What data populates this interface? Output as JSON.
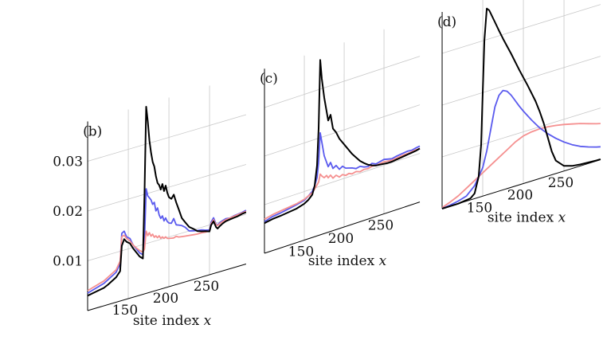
{
  "colors": {
    "black": "#000000",
    "blue": "#5a5aee",
    "pink": "#f59090",
    "grid": "#c8c8c8"
  },
  "chart_data": [
    {
      "panel_label": "(b)",
      "type": "line",
      "xlabel": "site index",
      "xlabel_var": "x",
      "x_ticks": [
        "150",
        "200",
        "250"
      ],
      "y_ticks": [
        "0.01",
        "0.02",
        "0.03"
      ],
      "series": [
        {
          "color": "#5a5aee",
          "x": [
            100,
            110,
            120,
            125,
            130,
            135,
            140,
            142,
            145,
            148,
            152,
            156,
            160,
            164,
            168,
            170,
            172,
            174,
            176,
            178,
            180,
            182,
            184,
            186,
            188,
            190,
            192,
            194,
            196,
            198,
            200,
            203,
            206,
            209,
            212,
            216,
            220,
            225,
            230,
            235,
            240,
            245,
            250,
            252,
            255,
            258,
            260,
            263,
            266,
            270,
            275,
            280,
            285,
            290,
            295
          ],
          "y": [
            0.0035,
            0.004,
            0.0045,
            0.005,
            0.0055,
            0.006,
            0.0075,
            0.0135,
            0.0138,
            0.0125,
            0.012,
            0.0105,
            0.0095,
            0.0085,
            0.008,
            0.011,
            0.021,
            0.0195,
            0.019,
            0.0185,
            0.0175,
            0.0178,
            0.016,
            0.0165,
            0.015,
            0.0142,
            0.0146,
            0.0135,
            0.014,
            0.0132,
            0.0128,
            0.0126,
            0.0134,
            0.012,
            0.0118,
            0.0115,
            0.011,
            0.01,
            0.0098,
            0.0096,
            0.0095,
            0.0092,
            0.009,
            0.0105,
            0.0112,
            0.0098,
            0.0095,
            0.0099,
            0.0101,
            0.0103,
            0.0102,
            0.0104,
            0.0105,
            0.0106,
            0.0108
          ]
        },
        {
          "color": "#f59090",
          "x": [
            100,
            110,
            120,
            125,
            130,
            135,
            140,
            142,
            145,
            148,
            152,
            156,
            160,
            164,
            168,
            170,
            172,
            174,
            176,
            178,
            180,
            182,
            184,
            186,
            188,
            190,
            192,
            194,
            196,
            198,
            200,
            203,
            206,
            209,
            212,
            216,
            220,
            225,
            230,
            235,
            240,
            245,
            250,
            252,
            255,
            258,
            260,
            263,
            266,
            270,
            275,
            280,
            285,
            290,
            295
          ],
          "y": [
            0.004,
            0.0045,
            0.005,
            0.0055,
            0.006,
            0.0065,
            0.008,
            0.0128,
            0.013,
            0.0122,
            0.0115,
            0.0105,
            0.0097,
            0.009,
            0.0085,
            0.009,
            0.0125,
            0.0115,
            0.012,
            0.0112,
            0.0115,
            0.0108,
            0.011,
            0.0105,
            0.0108,
            0.0102,
            0.0104,
            0.01,
            0.0102,
            0.0098,
            0.0097,
            0.0096,
            0.0095,
            0.0097,
            0.0094,
            0.0093,
            0.0092,
            0.0091,
            0.009,
            0.0089,
            0.0089,
            0.0088,
            0.0088,
            0.0102,
            0.0108,
            0.0097,
            0.0094,
            0.0097,
            0.0099,
            0.0101,
            0.0102,
            0.0103,
            0.0104,
            0.0105,
            0.0106
          ]
        },
        {
          "color": "#000000",
          "x": [
            100,
            110,
            120,
            125,
            130,
            135,
            140,
            142,
            145,
            148,
            152,
            156,
            160,
            164,
            168,
            170,
            172,
            174,
            176,
            178,
            180,
            182,
            184,
            186,
            188,
            190,
            192,
            194,
            196,
            198,
            200,
            203,
            206,
            209,
            212,
            216,
            220,
            225,
            230,
            235,
            240,
            245,
            250,
            252,
            255,
            258,
            260,
            263,
            266,
            270,
            275,
            280,
            285,
            290,
            295
          ],
          "y": [
            0.003,
            0.0033,
            0.0036,
            0.004,
            0.0045,
            0.005,
            0.006,
            0.011,
            0.0122,
            0.0115,
            0.011,
            0.0098,
            0.0088,
            0.0078,
            0.0072,
            0.02,
            0.0375,
            0.0345,
            0.0305,
            0.028,
            0.026,
            0.025,
            0.023,
            0.0215,
            0.021,
            0.02,
            0.021,
            0.0195,
            0.0205,
            0.019,
            0.018,
            0.0175,
            0.0182,
            0.0165,
            0.015,
            0.013,
            0.012,
            0.0108,
            0.0102,
            0.0095,
            0.0092,
            0.009,
            0.0087,
            0.0099,
            0.0105,
            0.0092,
            0.0088,
            0.0092,
            0.0095,
            0.0098,
            0.0099,
            0.01,
            0.0101,
            0.0103,
            0.0104
          ]
        }
      ]
    },
    {
      "panel_label": "(c)",
      "type": "line",
      "xlabel": "site index",
      "xlabel_var": "x",
      "x_ticks": [
        "150",
        "200",
        "250"
      ],
      "y_ticks": [],
      "series": [
        {
          "color": "#5a5aee",
          "x": [
            100,
            110,
            120,
            130,
            140,
            150,
            155,
            160,
            163,
            166,
            168,
            170,
            172,
            175,
            178,
            180,
            183,
            186,
            190,
            194,
            198,
            202,
            206,
            210,
            215,
            220,
            225,
            230,
            235,
            240,
            245,
            250,
            255,
            260,
            265,
            270,
            275,
            280,
            285,
            290,
            295
          ],
          "y": [
            0.0065,
            0.007,
            0.0072,
            0.0075,
            0.0078,
            0.0082,
            0.0088,
            0.0095,
            0.0105,
            0.012,
            0.015,
            0.021,
            0.019,
            0.016,
            0.0145,
            0.0135,
            0.0142,
            0.0128,
            0.0132,
            0.0122,
            0.0126,
            0.012,
            0.0118,
            0.0116,
            0.0112,
            0.0114,
            0.011,
            0.0108,
            0.0112,
            0.0108,
            0.011,
            0.0112,
            0.011,
            0.0108,
            0.011,
            0.0111,
            0.0112,
            0.0113,
            0.0112,
            0.0114,
            0.0115
          ]
        },
        {
          "color": "#f59090",
          "x": [
            100,
            110,
            120,
            130,
            140,
            150,
            155,
            160,
            163,
            166,
            168,
            170,
            172,
            175,
            178,
            180,
            183,
            186,
            190,
            194,
            198,
            202,
            206,
            210,
            215,
            220,
            225,
            230,
            235,
            240,
            245,
            250,
            255,
            260,
            265,
            270,
            275,
            280,
            285,
            290,
            295
          ],
          "y": [
            0.007,
            0.0074,
            0.0076,
            0.0078,
            0.008,
            0.0084,
            0.0088,
            0.0092,
            0.0098,
            0.0105,
            0.011,
            0.0125,
            0.012,
            0.0115,
            0.0118,
            0.0112,
            0.0116,
            0.0108,
            0.0112,
            0.0106,
            0.0109,
            0.0105,
            0.0107,
            0.0104,
            0.0106,
            0.0103,
            0.0105,
            0.0104,
            0.0106,
            0.0105,
            0.0106,
            0.0107,
            0.0106,
            0.0105,
            0.0106,
            0.0107,
            0.0108,
            0.0108,
            0.0109,
            0.011,
            0.011
          ]
        },
        {
          "color": "#000000",
          "x": [
            100,
            110,
            120,
            130,
            140,
            150,
            155,
            160,
            163,
            166,
            168,
            170,
            172,
            175,
            178,
            180,
            183,
            186,
            190,
            194,
            198,
            202,
            206,
            210,
            215,
            220,
            225,
            230,
            235,
            240,
            245,
            250,
            255,
            260,
            265,
            270,
            275,
            280,
            285,
            290,
            295
          ],
          "y": [
            0.0062,
            0.0065,
            0.0066,
            0.0068,
            0.007,
            0.0075,
            0.008,
            0.0088,
            0.0105,
            0.0145,
            0.022,
            0.036,
            0.032,
            0.028,
            0.025,
            0.023,
            0.024,
            0.021,
            0.02,
            0.0185,
            0.0175,
            0.0165,
            0.0155,
            0.0145,
            0.0135,
            0.0125,
            0.0118,
            0.0112,
            0.0108,
            0.0105,
            0.0104,
            0.0103,
            0.0102,
            0.0102,
            0.0103,
            0.0104,
            0.0105,
            0.0106,
            0.0107,
            0.0108,
            0.011
          ]
        }
      ]
    },
    {
      "panel_label": "(d)",
      "type": "line",
      "xlabel": "site index",
      "xlabel_var": "x",
      "x_ticks": [
        "150",
        "200",
        "250"
      ],
      "y_ticks": [],
      "series": [
        {
          "color": "#f59090",
          "x": [
            100,
            110,
            120,
            130,
            140,
            150,
            160,
            170,
            180,
            190,
            200,
            210,
            220,
            230,
            240,
            250,
            260,
            270,
            280,
            290,
            295
          ],
          "y": [
            0.0002,
            0.0008,
            0.0015,
            0.0025,
            0.0035,
            0.0045,
            0.0055,
            0.0065,
            0.0075,
            0.0085,
            0.0092,
            0.0095,
            0.0096,
            0.0095,
            0.0093,
            0.009,
            0.0086,
            0.0082,
            0.0077,
            0.0072,
            0.007
          ]
        },
        {
          "color": "#5a5aee",
          "x": [
            100,
            110,
            120,
            130,
            140,
            150,
            155,
            160,
            165,
            170,
            175,
            180,
            185,
            190,
            195,
            200,
            210,
            220,
            230,
            240,
            250,
            260,
            270,
            280,
            290,
            295
          ],
          "y": [
            0.0,
            0.0002,
            0.0005,
            0.001,
            0.0025,
            0.0055,
            0.0085,
            0.0125,
            0.0165,
            0.0185,
            0.0192,
            0.0188,
            0.0178,
            0.0165,
            0.0152,
            0.014,
            0.0118,
            0.0098,
            0.0082,
            0.0068,
            0.0056,
            0.0046,
            0.0038,
            0.0032,
            0.0027,
            0.0025
          ]
        },
        {
          "color": "#000000",
          "x": [
            100,
            120,
            135,
            140,
            145,
            148,
            150,
            152,
            155,
            158,
            162,
            166,
            170,
            175,
            180,
            185,
            190,
            195,
            200,
            205,
            210,
            215,
            220,
            225,
            230,
            235,
            240,
            250,
            260,
            270,
            280,
            290,
            295
          ],
          "y": [
            0.0,
            0.0,
            0.0003,
            0.001,
            0.004,
            0.01,
            0.02,
            0.03,
            0.036,
            0.0355,
            0.034,
            0.0325,
            0.031,
            0.0292,
            0.0275,
            0.0258,
            0.024,
            0.0222,
            0.0205,
            0.0188,
            0.017,
            0.0152,
            0.013,
            0.0105,
            0.0075,
            0.0045,
            0.0025,
            0.001,
            0.0005,
            0.0003,
            0.0002,
            0.0001,
            0.0001
          ]
        }
      ]
    }
  ]
}
